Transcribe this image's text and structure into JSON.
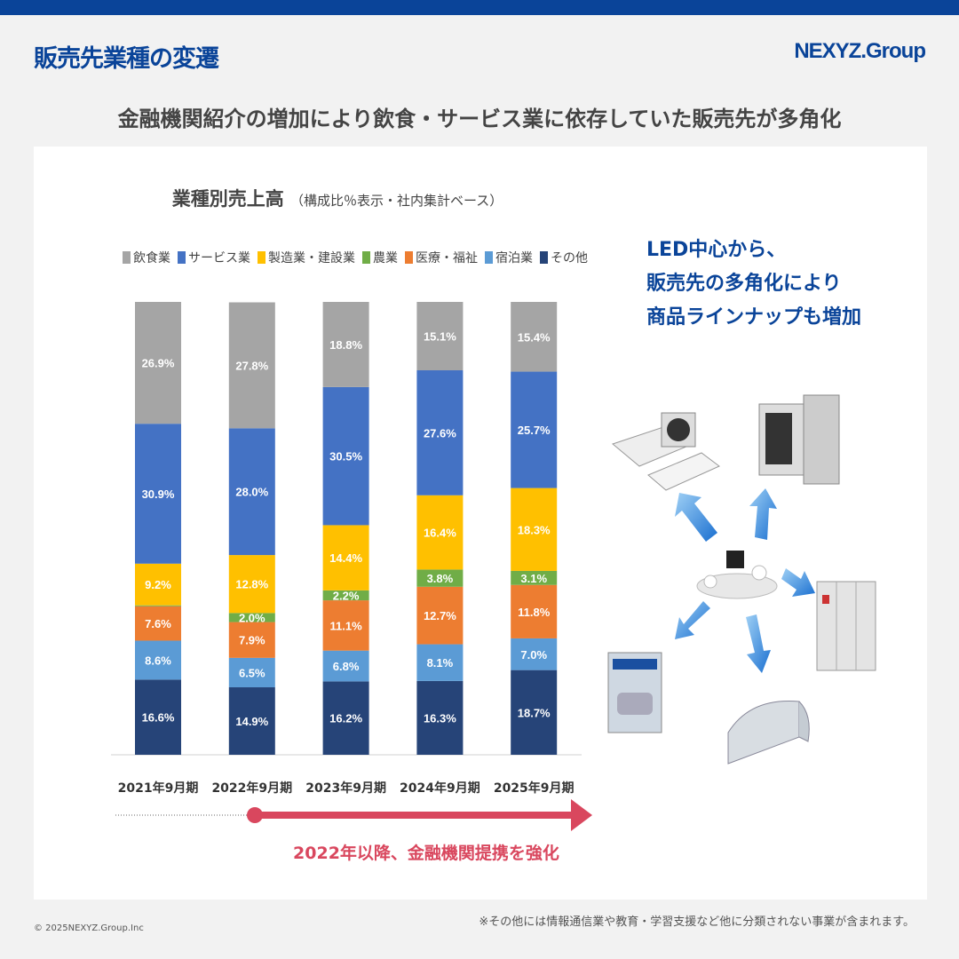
{
  "header": {
    "title": "販売先業種の変遷",
    "logo": "NEXYZ.Group",
    "subtitle": "金融機関紹介の増加により飲食・サービス業に依存していた販売先が多角化"
  },
  "callout": {
    "line1": "LED中心から、",
    "line2": "販売先の多角化により",
    "line3": "商品ラインナップも増加"
  },
  "timeline": {
    "label": "2022年以降、金融機関提携を強化",
    "arrow_color": "#d9475e"
  },
  "footer": {
    "copyright": "© 2025NEXYZ.Group.Inc",
    "note": "※その他には情報通信業や教育・学習支援など他に分類されない事業が含まれます。"
  },
  "products": [
    "air-conditioner",
    "kitchen-equipment",
    "led-lighting",
    "power-distribution-panel",
    "greenhouse",
    "car-wash-machine"
  ],
  "chart_data": {
    "type": "bar",
    "stacked": true,
    "title": "業種別売上高",
    "subtitle": "（構成比％表示・社内集計ベース）",
    "categories": [
      "2021年9月期",
      "2022年9月期",
      "2023年9月期",
      "2024年9月期",
      "2025年9月期"
    ],
    "ylim": [
      0,
      100
    ],
    "grid": false,
    "legend_position": "top",
    "series": [
      {
        "name": "その他",
        "color": "#264478",
        "values": [
          16.6,
          14.9,
          16.2,
          16.3,
          18.7
        ]
      },
      {
        "name": "宿泊業",
        "color": "#5b9bd5",
        "values": [
          8.6,
          6.5,
          6.8,
          8.1,
          7.0
        ]
      },
      {
        "name": "医療・福祉",
        "color": "#ed7d31",
        "values": [
          7.6,
          7.9,
          11.1,
          12.7,
          11.8
        ]
      },
      {
        "name": "農業",
        "color": "#70ad47",
        "values": [
          0.2,
          2.0,
          2.2,
          3.8,
          3.1
        ]
      },
      {
        "name": "製造業・建設業",
        "color": "#ffc000",
        "values": [
          9.2,
          12.8,
          14.4,
          16.4,
          18.3
        ]
      },
      {
        "name": "サービス業",
        "color": "#4472c4",
        "values": [
          30.9,
          28.0,
          30.5,
          27.6,
          25.7
        ]
      },
      {
        "name": "飲食業",
        "color": "#a5a5a5",
        "values": [
          26.9,
          27.8,
          18.8,
          15.1,
          15.4
        ]
      }
    ],
    "legend_order": [
      "飲食業",
      "サービス業",
      "製造業・建設業",
      "農業",
      "医療・福祉",
      "宿泊業",
      "その他"
    ]
  }
}
